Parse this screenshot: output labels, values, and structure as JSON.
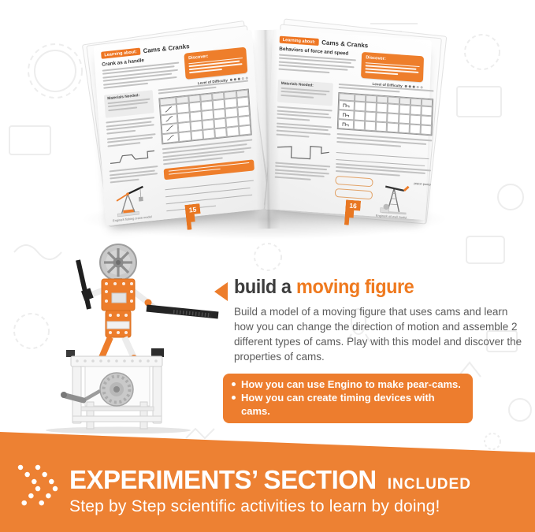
{
  "colors": {
    "orange": "#ED7D2B",
    "banner_orange": "#ED8133",
    "accent_deep": "#E87722",
    "title_dark": "#3D3D3D",
    "body_gray": "#5C5C5C"
  },
  "icons": {
    "arrow_left": "triangle-left-icon",
    "chevron_dots": "double-chevron-dots-icon",
    "bullet": "dot"
  },
  "booklet": {
    "left": {
      "tag": "Learning about:",
      "title": "Cams & Cranks",
      "heading": "Crank as a handle",
      "discover": "Discover:",
      "difficulty_label": "Level of Difficulty",
      "difficulty_dots": "3,5",
      "materials": "Materials Needed:",
      "caption": "Engino® fishing crane model",
      "page_number": "15"
    },
    "right": {
      "tag": "Learning about:",
      "title": "Cams & Cranks",
      "heading": "Behaviors of force and speed",
      "discover": "Discover:",
      "difficulty_label": "Level of Difficulty",
      "difficulty_dots": "3,5",
      "materials": "Materials Needed:",
      "piston_label": "piston pump",
      "caption": "Engino® oil well model",
      "page_number": "16"
    }
  },
  "feature": {
    "title_prefix": "build a",
    "title_highlight": "moving figure",
    "description": "Build a model of a moving figure that uses cams and learn how you can change the direction of motion and assemble 2 different types of cams. Play with this model and discover the properties of cams.",
    "bullets": [
      "How you can use Engino to make pear-cams.",
      "How you can create timing devices with cams."
    ]
  },
  "banner": {
    "title": "EXPERIMENTS’ SECTION",
    "suffix": "INCLUDED",
    "subtitle": "Step by Step scientific activities to learn by doing!"
  }
}
